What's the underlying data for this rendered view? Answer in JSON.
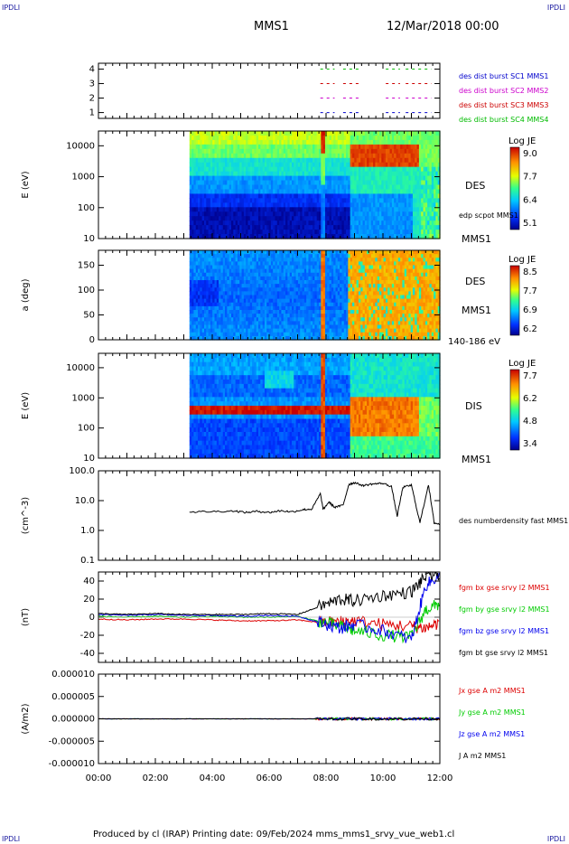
{
  "corner_label": "IPDLI",
  "header": {
    "spacecraft": "MMS1",
    "datetime": "12/Mar/2018 00:00"
  },
  "footer": "Produced by cl (IRAP)   Printing date: 09/Feb/2024   mms_mms1_srvy_vue_web1.cl",
  "time_axis": {
    "ticks": [
      "00:00",
      "02:00",
      "04:00",
      "06:00",
      "08:00",
      "10:00",
      "12:00"
    ],
    "range_hours": [
      0,
      12
    ]
  },
  "colors": {
    "mms1": "#0000cc",
    "mms2": "#cc00cc",
    "mms3": "#cc0000",
    "mms4": "#00bb00",
    "bx": "#dd0000",
    "by": "#00cc00",
    "bz": "#0000ee",
    "bt": "#000000"
  },
  "chart_data": [
    {
      "id": "burst",
      "type": "scatter",
      "yticks": [
        "1",
        "2",
        "3",
        "4"
      ],
      "ylim": [
        0.6,
        4.4
      ],
      "legend": [
        {
          "name": "des dist burst SC1 MMS1",
          "color": "#0000cc"
        },
        {
          "name": "des dist burst SC2 MMS2",
          "color": "#cc00cc"
        },
        {
          "name": "des dist burst SC3 MMS3",
          "color": "#cc0000"
        },
        {
          "name": "des dist burst SC4 MMS4",
          "color": "#00bb00"
        }
      ],
      "segments_hours": [
        [
          7.8,
          8.3
        ],
        [
          8.6,
          9.2
        ],
        [
          10.1,
          10.6
        ],
        [
          10.8,
          11.7
        ]
      ]
    },
    {
      "id": "des_energy",
      "type": "heatmap",
      "ylabel": "E (eV)",
      "yticks": [
        "10",
        "100",
        "1000",
        "10000"
      ],
      "ylim": [
        10,
        30000
      ],
      "log_y": true,
      "data_start_hour": 3.2,
      "label": "DES",
      "aux_label": "edp scpot MMS1",
      "spacecraft_label": "MMS1",
      "colorbar": {
        "title": "Log JE",
        "ticks": [
          "9.0",
          "7.7",
          "6.4",
          "5.1"
        ],
        "range": [
          5.1,
          9.0
        ]
      }
    },
    {
      "id": "des_pitch",
      "type": "heatmap",
      "ylabel": "a (deg)",
      "yticks": [
        "0",
        "50",
        "100",
        "150"
      ],
      "ylim": [
        0,
        180
      ],
      "data_start_hour": 3.2,
      "label": "DES",
      "spacecraft_label": "MMS1",
      "energy_label": "140-186 eV",
      "colorbar": {
        "title": "Log JE",
        "ticks": [
          "8.5",
          "7.7",
          "6.9",
          "6.2"
        ],
        "range": [
          6.2,
          8.5
        ]
      }
    },
    {
      "id": "dis_energy",
      "type": "heatmap",
      "ylabel": "E (eV)",
      "yticks": [
        "10",
        "100",
        "1000",
        "10000"
      ],
      "ylim": [
        10,
        30000
      ],
      "log_y": true,
      "data_start_hour": 3.2,
      "label": "DIS",
      "spacecraft_label": "MMS1",
      "colorbar": {
        "title": "Log JE",
        "ticks": [
          "7.7",
          "6.2",
          "4.8",
          "3.4"
        ],
        "range": [
          3.4,
          7.7
        ]
      }
    },
    {
      "id": "density",
      "type": "line",
      "ylabel": "(cm^-3)",
      "yticks": [
        "0.1",
        "1.0",
        "10.0",
        "100.0"
      ],
      "ylim": [
        0.1,
        100
      ],
      "log_y": true,
      "series": [
        {
          "name": "des numberdensity fast MMS1",
          "color": "#000000",
          "x": [
            3.2,
            4.0,
            4.8,
            5.2,
            5.6,
            6.0,
            6.4,
            6.8,
            7.2,
            7.5,
            7.8,
            7.9,
            8.1,
            8.3,
            8.6,
            8.8,
            9.0,
            9.3,
            9.6,
            10.0,
            10.3,
            10.5,
            10.7,
            11.0,
            11.3,
            11.6,
            11.8,
            12.0
          ],
          "y": [
            4.2,
            4.3,
            4.5,
            4.0,
            4.4,
            4.0,
            4.6,
            4.2,
            5.0,
            5.2,
            17,
            5.0,
            9.0,
            6.0,
            7.0,
            35,
            40,
            32,
            36,
            38,
            30,
            3.0,
            28,
            33,
            1.8,
            35,
            1.8,
            1.6
          ]
        }
      ]
    },
    {
      "id": "magnetic",
      "type": "line",
      "ylabel": "(nT)",
      "yticks": [
        "-40",
        "-20",
        "0",
        "20",
        "40"
      ],
      "ylim": [
        -50,
        50
      ],
      "series": [
        {
          "name": "fgm bx gse srvy l2 MMS1",
          "color": "#dd0000",
          "x": [
            0,
            1,
            2,
            3,
            4,
            5,
            6,
            7,
            7.8,
            8.5,
            9,
            10,
            11,
            11.5,
            12
          ],
          "y": [
            -2,
            -3,
            -2,
            -2,
            -3,
            -4,
            -4,
            -3,
            -6,
            -5,
            -4,
            -8,
            -10,
            -12,
            -6
          ]
        },
        {
          "name": "fgm by gse srvy l2 MMS1",
          "color": "#00cc00",
          "x": [
            0,
            1,
            2,
            3,
            4,
            5,
            6,
            7,
            7.8,
            8.5,
            9,
            10,
            11,
            11.5,
            12
          ],
          "y": [
            1,
            0,
            1,
            0,
            1,
            0,
            0,
            1,
            -5,
            -10,
            -15,
            -20,
            -22,
            8,
            15
          ]
        },
        {
          "name": "fgm bz gse srvy l2 MMS1",
          "color": "#0000ee",
          "x": [
            0,
            1,
            2,
            3,
            4,
            5,
            6,
            7,
            7.8,
            8.5,
            9,
            10,
            11,
            11.5,
            12
          ],
          "y": [
            3,
            2,
            3,
            2,
            2,
            1,
            2,
            1,
            -6,
            -12,
            -8,
            -15,
            -25,
            35,
            47
          ]
        },
        {
          "name": "fgm bt gse srvy l2 MMS1",
          "color": "#000000",
          "x": [
            0,
            1,
            2,
            3,
            4,
            5,
            6,
            7,
            7.8,
            8.5,
            9,
            10,
            11,
            11.5,
            12
          ],
          "y": [
            4,
            3,
            4,
            3,
            3,
            3,
            4,
            3,
            12,
            20,
            18,
            24,
            28,
            45,
            48
          ]
        }
      ]
    },
    {
      "id": "current",
      "type": "line",
      "ylabel": "(A/m2)",
      "yticks": [
        "-0.000010",
        "-0.000005",
        "0.000000",
        "0.000005",
        "0.000010"
      ],
      "ylim": [
        -1e-05,
        1e-05
      ],
      "series": [
        {
          "name": "Jx gse A m2 MMS1",
          "color": "#dd0000",
          "x": [
            0,
            12
          ],
          "y": [
            0,
            0
          ]
        },
        {
          "name": "Jy gse A m2 MMS1",
          "color": "#00cc00",
          "x": [
            0,
            12
          ],
          "y": [
            0,
            0
          ]
        },
        {
          "name": "Jz gse A m2 MMS1",
          "color": "#0000ee",
          "x": [
            0,
            12
          ],
          "y": [
            0,
            0
          ]
        },
        {
          "name": "J A m2 MMS1",
          "color": "#000000",
          "x": [
            0,
            12
          ],
          "y": [
            0,
            0
          ]
        }
      ]
    }
  ]
}
